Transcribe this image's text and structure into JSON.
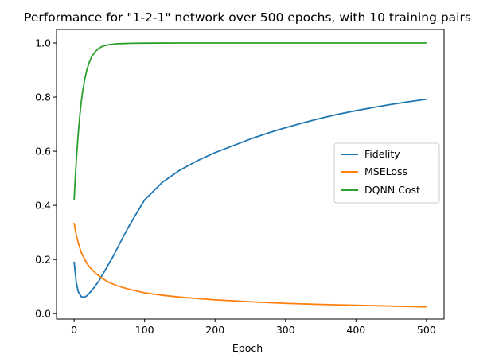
{
  "chart_data": {
    "type": "line",
    "title": "Performance for \"1-2-1\" network over 500 epochs, with 10 training pairs",
    "xlabel": "Epoch",
    "ylabel": "",
    "xlim": [
      -25,
      525
    ],
    "ylim": [
      -0.02,
      1.05
    ],
    "xticks": [
      0,
      100,
      200,
      300,
      400,
      500
    ],
    "yticks": [
      0.0,
      0.2,
      0.4,
      0.6,
      0.8,
      1.0
    ],
    "xtick_labels": [
      "0",
      "100",
      "200",
      "300",
      "400",
      "500"
    ],
    "ytick_labels": [
      "0.0",
      "0.2",
      "0.4",
      "0.6",
      "0.8",
      "1.0"
    ],
    "grid": false,
    "legend_position": "center-right",
    "series": [
      {
        "name": "Fidelity",
        "color": "#1f77b4",
        "x": [
          0,
          3,
          6,
          10,
          14,
          18,
          25,
          35,
          45,
          55,
          65,
          75,
          85,
          100,
          125,
          150,
          175,
          200,
          225,
          250,
          275,
          300,
          325,
          350,
          375,
          400,
          425,
          450,
          475,
          500
        ],
        "y": [
          0.192,
          0.115,
          0.08,
          0.063,
          0.06,
          0.066,
          0.085,
          0.12,
          0.165,
          0.21,
          0.26,
          0.31,
          0.355,
          0.42,
          0.485,
          0.53,
          0.565,
          0.595,
          0.62,
          0.645,
          0.667,
          0.687,
          0.705,
          0.722,
          0.737,
          0.75,
          0.762,
          0.773,
          0.783,
          0.792
        ]
      },
      {
        "name": "MSELoss",
        "color": "#ff7f0e",
        "x": [
          0,
          3,
          6,
          10,
          15,
          20,
          30,
          40,
          50,
          60,
          75,
          100,
          125,
          150,
          175,
          200,
          250,
          300,
          350,
          400,
          450,
          500
        ],
        "y": [
          0.335,
          0.29,
          0.26,
          0.227,
          0.2,
          0.178,
          0.15,
          0.13,
          0.115,
          0.104,
          0.092,
          0.077,
          0.068,
          0.061,
          0.056,
          0.051,
          0.044,
          0.038,
          0.034,
          0.031,
          0.028,
          0.025
        ]
      },
      {
        "name": "DQNN Cost",
        "color": "#2ca02c",
        "x": [
          0,
          2,
          4,
          6,
          8,
          10,
          12,
          15,
          18,
          21,
          25,
          30,
          35,
          40,
          50,
          60,
          70,
          80,
          100,
          150,
          200,
          300,
          400,
          500
        ],
        "y": [
          0.42,
          0.52,
          0.6,
          0.67,
          0.73,
          0.78,
          0.82,
          0.865,
          0.9,
          0.925,
          0.95,
          0.968,
          0.98,
          0.988,
          0.994,
          0.997,
          0.998,
          0.999,
          0.9995,
          1.0,
          1.0,
          1.0,
          1.0,
          1.0
        ]
      }
    ]
  }
}
